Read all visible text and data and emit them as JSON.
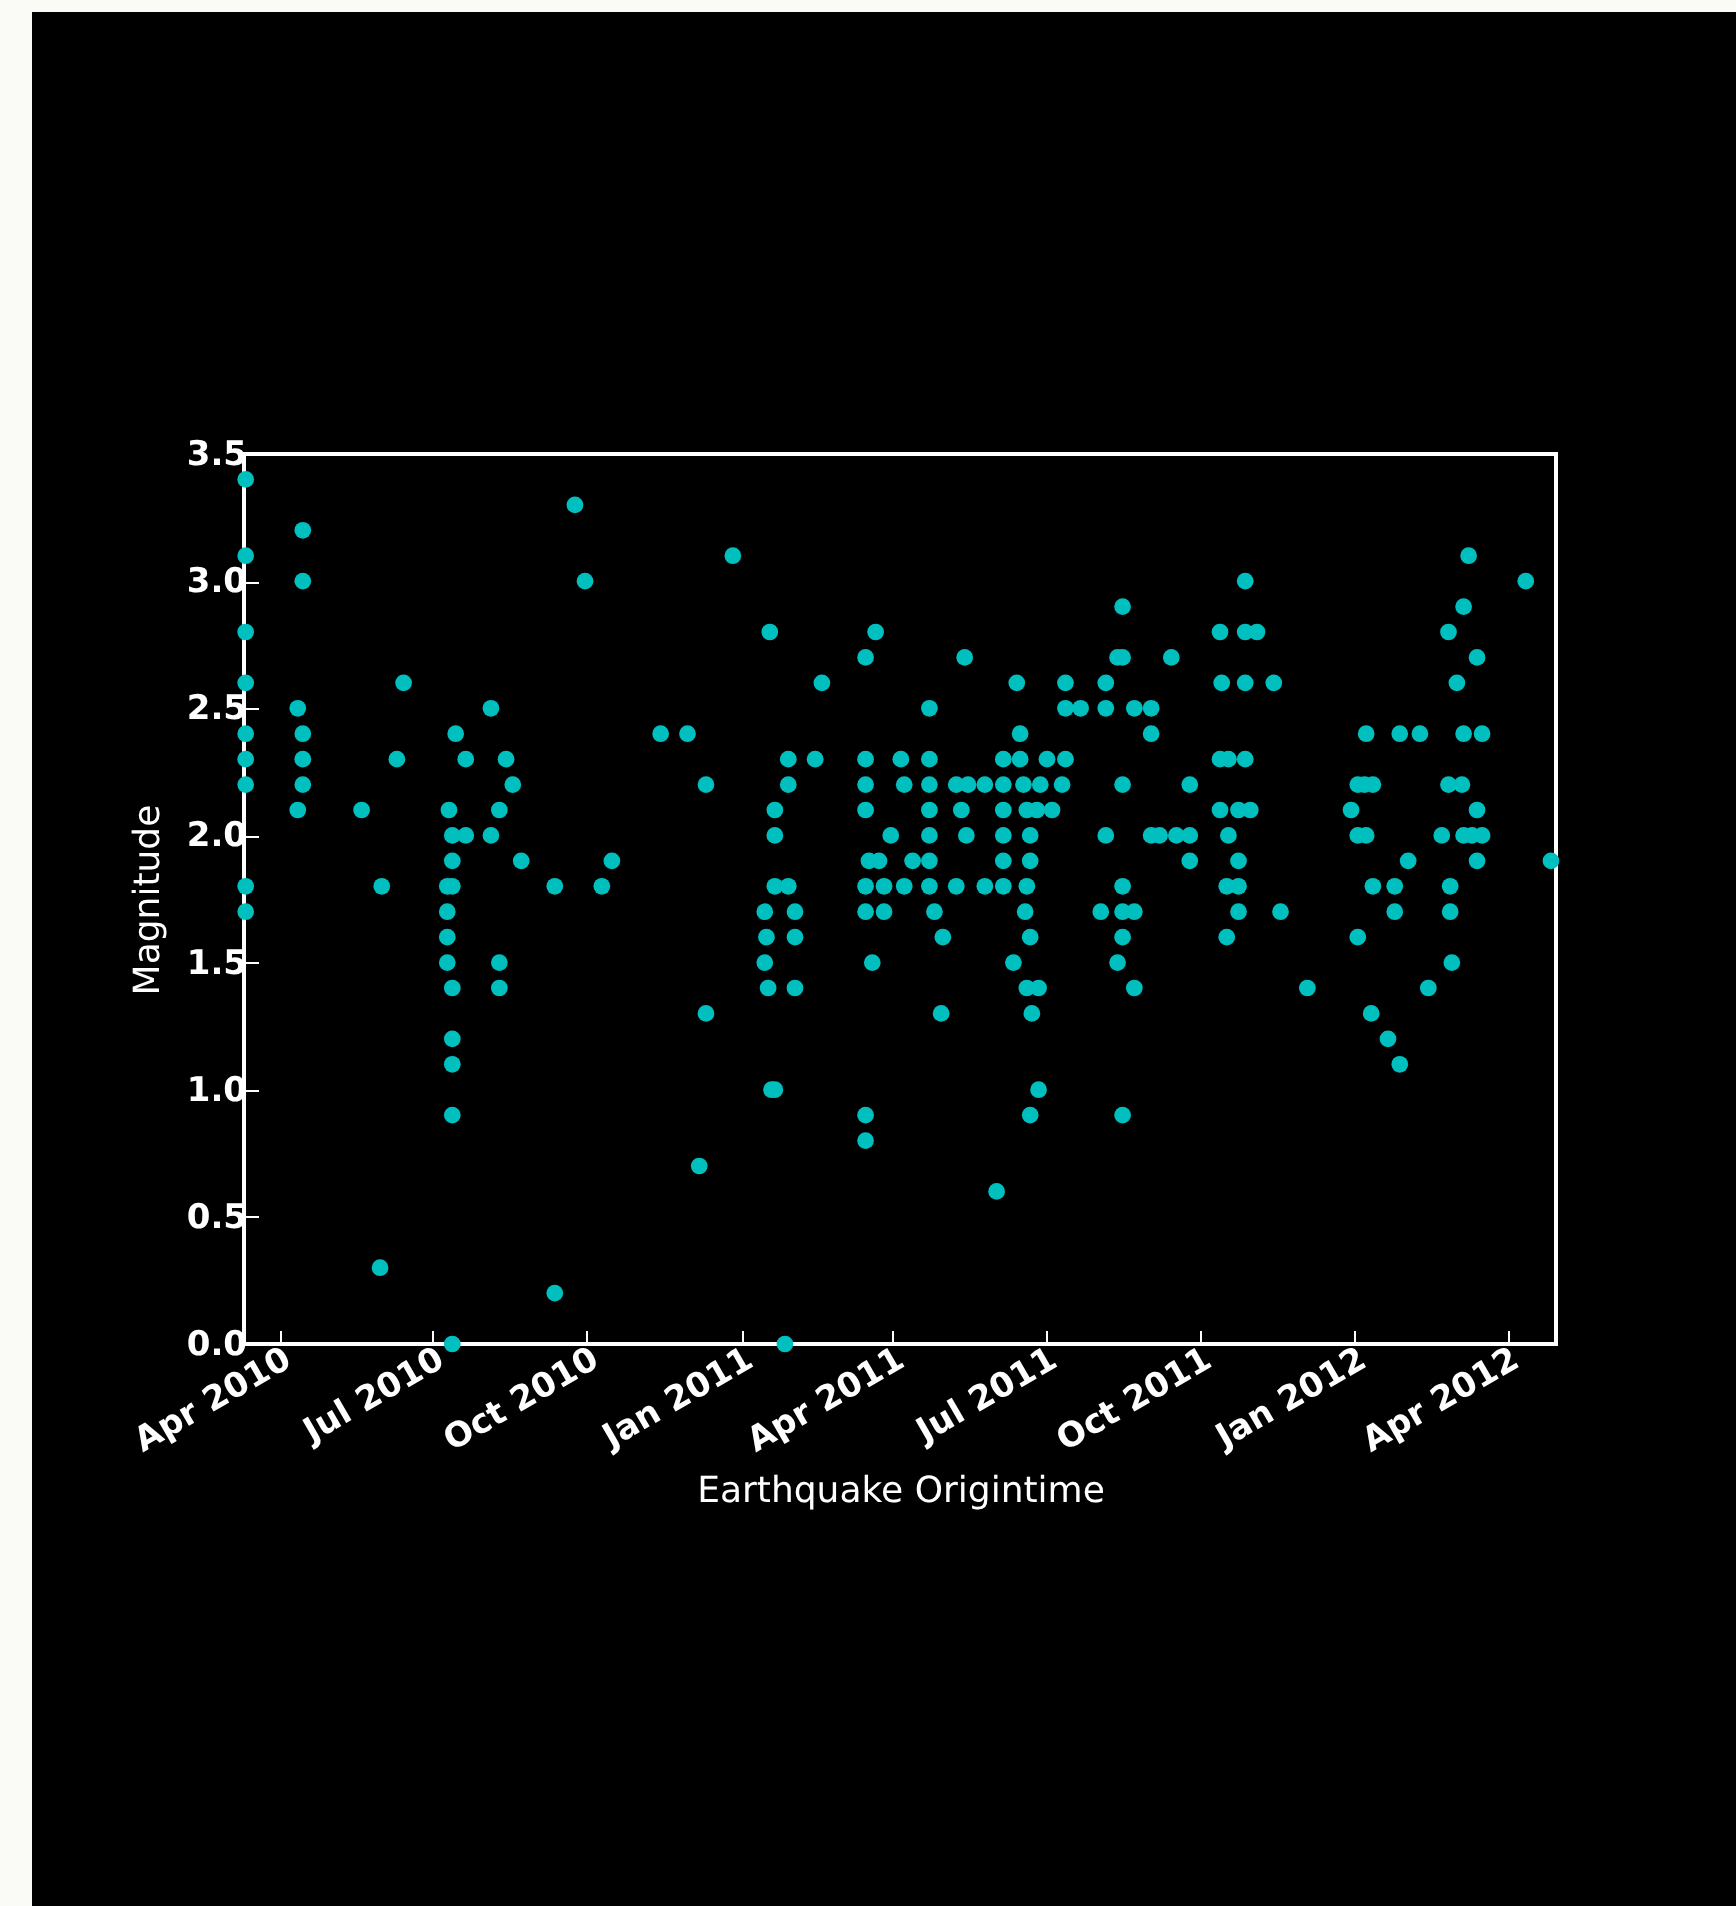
{
  "chart_data": {
    "type": "scatter",
    "xlabel": "Earthquake Origintime",
    "ylabel": "Magnitude",
    "marker": "circle",
    "grid": false,
    "xlim": [
      "2010-03-11",
      "2012-04-30"
    ],
    "xticks": [
      {
        "value": "2010-04-01",
        "label": "Apr 2010"
      },
      {
        "value": "2010-07-01",
        "label": "Jul 2010"
      },
      {
        "value": "2010-10-01",
        "label": "Oct 2010"
      },
      {
        "value": "2011-01-01",
        "label": "Jan 2011"
      },
      {
        "value": "2011-04-01",
        "label": "Apr 2011"
      },
      {
        "value": "2011-07-01",
        "label": "Jul 2011"
      },
      {
        "value": "2011-10-01",
        "label": "Oct 2011"
      },
      {
        "value": "2012-01-01",
        "label": "Jan 2012"
      },
      {
        "value": "2012-04-01",
        "label": "Apr 2012"
      }
    ],
    "ylim": [
      0,
      3.5
    ],
    "yticks": [
      {
        "value": 0,
        "label": "0.0"
      },
      {
        "value": 0.5,
        "label": "0.5"
      },
      {
        "value": 1,
        "label": "1.0"
      },
      {
        "value": 1.5,
        "label": "1.5"
      },
      {
        "value": 2,
        "label": "2.0"
      },
      {
        "value": 2.5,
        "label": "2.5"
      },
      {
        "value": 3,
        "label": "3.0"
      },
      {
        "value": 3.5,
        "label": "3.5"
      }
    ],
    "series": [
      {
        "color": "#00bfbf",
        "x": [
          "2010-03-12",
          "2010-03-12",
          "2010-03-12",
          "2010-03-12",
          "2010-03-12",
          "2010-03-12",
          "2010-03-12",
          "2010-03-12",
          "2010-03-12",
          "2010-04-15",
          "2010-04-15",
          "2010-04-15",
          "2010-04-15",
          "2010-04-15",
          "2010-04-12",
          "2010-04-12",
          "2010-05-20",
          "2010-05-31",
          "2010-06-01",
          "2010-06-10",
          "2010-06-14",
          "2010-07-11",
          "2010-07-13",
          "2010-07-13",
          "2010-07-13",
          "2010-07-13",
          "2010-07-13",
          "2010-07-13",
          "2010-07-13",
          "2010-07-13",
          "2010-07-10",
          "2010-07-10",
          "2010-07-10",
          "2010-07-10",
          "2010-07-15",
          "2010-07-21",
          "2010-07-21",
          "2010-08-05",
          "2010-08-05",
          "2010-08-10",
          "2010-08-10",
          "2010-08-10",
          "2010-08-14",
          "2010-08-18",
          "2010-08-23",
          "2010-09-12",
          "2010-09-12",
          "2010-09-24",
          "2010-09-30",
          "2010-10-10",
          "2010-10-16",
          "2010-11-14",
          "2010-11-30",
          "2010-12-07",
          "2010-12-11",
          "2010-12-11",
          "2010-12-27",
          "2011-01-18",
          "2011-01-15",
          "2011-01-15",
          "2011-01-16",
          "2011-01-17",
          "2011-01-21",
          "2011-01-21",
          "2011-01-21",
          "2011-01-21",
          "2011-01-19",
          "2011-01-27",
          "2011-01-29",
          "2011-01-29",
          "2011-01-29",
          "2011-02-02",
          "2011-02-02",
          "2011-02-02",
          "2011-02-14",
          "2011-02-18",
          "2011-03-16",
          "2011-03-16",
          "2011-03-16",
          "2011-03-16",
          "2011-03-16",
          "2011-03-16",
          "2011-03-16",
          "2011-03-16",
          "2011-03-18",
          "2011-03-20",
          "2011-03-22",
          "2011-03-24",
          "2011-03-27",
          "2011-03-27",
          "2011-03-31",
          "2011-04-06",
          "2011-04-08",
          "2011-04-08",
          "2011-04-13",
          "2011-04-23",
          "2011-04-23",
          "2011-04-23",
          "2011-04-23",
          "2011-04-23",
          "2011-04-23",
          "2011-04-23",
          "2011-04-26",
          "2011-04-30",
          "2011-05-01",
          "2011-05-09",
          "2011-05-09",
          "2011-05-12",
          "2011-05-14",
          "2011-05-15",
          "2011-05-16",
          "2011-05-26",
          "2011-05-26",
          "2011-06-02",
          "2011-06-06",
          "2011-06-06",
          "2011-06-06",
          "2011-06-06",
          "2011-06-06",
          "2011-06-06",
          "2011-06-12",
          "2011-06-14",
          "2011-06-16",
          "2011-06-16",
          "2011-06-18",
          "2011-06-20",
          "2011-06-20",
          "2011-06-20",
          "2011-06-19",
          "2011-06-22",
          "2011-06-22",
          "2011-06-22",
          "2011-06-22",
          "2011-06-23",
          "2011-06-27",
          "2011-06-27",
          "2011-06-26",
          "2011-06-28",
          "2011-07-02",
          "2011-07-05",
          "2011-07-11",
          "2011-07-13",
          "2011-07-13",
          "2011-07-13",
          "2011-07-22",
          "2011-08-06",
          "2011-08-06",
          "2011-08-06",
          "2011-08-03",
          "2011-08-13",
          "2011-08-13",
          "2011-08-16",
          "2011-08-16",
          "2011-08-16",
          "2011-08-16",
          "2011-08-16",
          "2011-08-16",
          "2011-08-16",
          "2011-08-23",
          "2011-08-23",
          "2011-08-23",
          "2011-09-02",
          "2011-09-02",
          "2011-09-02",
          "2011-09-07",
          "2011-09-14",
          "2011-09-17",
          "2011-09-25",
          "2011-09-25",
          "2011-09-25",
          "2011-10-13",
          "2011-10-13",
          "2011-10-13",
          "2011-10-14",
          "2011-10-17",
          "2011-10-17",
          "2011-10-18",
          "2011-10-18",
          "2011-10-24",
          "2011-10-24",
          "2011-10-24",
          "2011-10-24",
          "2011-10-28",
          "2011-10-28",
          "2011-10-28",
          "2011-10-28",
          "2011-10-31",
          "2011-11-04",
          "2011-11-14",
          "2011-11-18",
          "2011-12-04",
          "2011-12-30",
          "2012-01-03",
          "2012-01-03",
          "2012-01-03",
          "2012-01-07",
          "2012-01-08",
          "2012-01-08",
          "2012-01-12",
          "2012-01-12",
          "2012-01-11",
          "2012-01-21",
          "2012-01-25",
          "2012-01-25",
          "2012-01-28",
          "2012-01-28",
          "2012-02-02",
          "2012-02-09",
          "2012-02-14",
          "2012-02-22",
          "2012-02-26",
          "2012-02-26",
          "2012-02-27",
          "2012-02-27",
          "2012-02-28",
          "2012-03-02",
          "2012-03-06",
          "2012-03-06",
          "2012-03-06",
          "2012-03-05",
          "2012-03-09",
          "2012-03-11",
          "2012-03-14",
          "2012-03-14",
          "2012-03-14",
          "2012-03-17",
          "2012-03-17",
          "2012-04-12",
          "2012-04-27"
        ],
        "values": [
          3.4,
          3.1,
          2.8,
          2.6,
          2.4,
          2.3,
          2.2,
          1.8,
          1.7,
          3.2,
          3.0,
          2.4,
          2.3,
          2.2,
          2.5,
          2.1,
          2.1,
          0.3,
          1.8,
          2.3,
          2.6,
          2.1,
          2.0,
          1.9,
          1.8,
          1.4,
          1.2,
          1.1,
          0.9,
          0.0,
          1.8,
          1.7,
          1.6,
          1.5,
          2.4,
          2.3,
          2.0,
          2.5,
          2.0,
          2.1,
          1.5,
          1.4,
          2.3,
          2.2,
          1.9,
          1.8,
          0.2,
          3.3,
          3.0,
          1.8,
          1.9,
          2.4,
          2.4,
          0.7,
          2.2,
          1.3,
          3.1,
          2.8,
          1.7,
          1.5,
          1.6,
          1.4,
          2.1,
          2.0,
          1.8,
          1.0,
          1.0,
          0.0,
          2.3,
          2.2,
          1.8,
          1.7,
          1.6,
          1.4,
          2.3,
          2.6,
          2.7,
          2.3,
          2.2,
          2.1,
          1.8,
          1.7,
          0.9,
          0.8,
          1.9,
          1.5,
          2.8,
          1.9,
          1.8,
          1.7,
          2.0,
          2.3,
          2.2,
          1.8,
          1.9,
          2.5,
          2.3,
          2.2,
          2.1,
          2.0,
          1.9,
          1.8,
          1.7,
          1.3,
          1.6,
          2.2,
          1.8,
          2.1,
          2.7,
          2.0,
          2.2,
          1.8,
          2.2,
          0.6,
          2.3,
          2.2,
          2.1,
          2.0,
          1.9,
          1.8,
          1.5,
          2.6,
          2.4,
          2.3,
          2.2,
          2.1,
          1.8,
          1.4,
          1.7,
          2.0,
          1.9,
          1.6,
          0.9,
          1.3,
          1.0,
          1.4,
          2.1,
          2.2,
          2.3,
          2.1,
          2.2,
          2.6,
          2.5,
          2.3,
          2.5,
          2.6,
          2.5,
          2.0,
          1.7,
          2.7,
          1.5,
          2.9,
          2.7,
          2.2,
          1.8,
          1.7,
          1.6,
          0.9,
          2.5,
          1.7,
          1.4,
          2.5,
          2.4,
          2.0,
          2.0,
          2.7,
          2.0,
          2.2,
          2.0,
          1.9,
          2.8,
          2.3,
          2.1,
          2.6,
          1.6,
          1.8,
          2.3,
          2.0,
          2.1,
          1.9,
          1.8,
          1.7,
          3.0,
          2.8,
          2.6,
          2.3,
          2.1,
          2.8,
          2.6,
          1.7,
          1.4,
          2.1,
          2.2,
          2.0,
          1.6,
          2.2,
          2.4,
          2.0,
          2.2,
          1.8,
          1.3,
          1.2,
          1.8,
          1.7,
          2.4,
          1.1,
          1.9,
          2.4,
          1.4,
          2.0,
          2.8,
          2.2,
          1.8,
          1.7,
          1.5,
          2.6,
          2.9,
          2.4,
          2.0,
          2.2,
          3.1,
          2.0,
          2.7,
          2.1,
          1.9,
          2.4,
          2.0,
          3.0,
          1.9
        ]
      }
    ]
  }
}
